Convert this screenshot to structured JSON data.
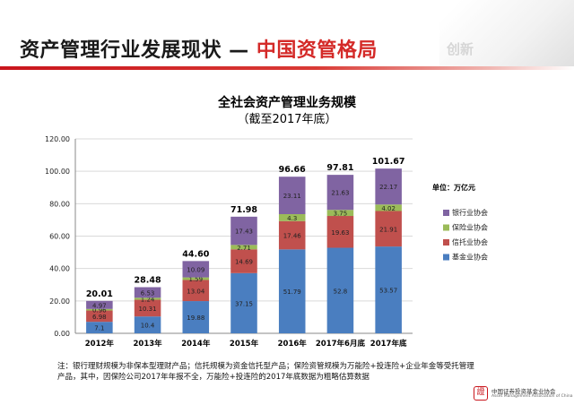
{
  "slide": {
    "title_main": "资产管理行业发展现状 —",
    "title_accent": "中国资管格局",
    "watermark": "创新"
  },
  "chart_data": {
    "type": "bar",
    "stacked": true,
    "title": "全社会资产管理业务规模",
    "subtitle": "（截至2017年底）",
    "categories": [
      "2012年",
      "2013年",
      "2014年",
      "2015年",
      "2016年",
      "2017年6月底",
      "2017年底"
    ],
    "series": [
      {
        "name": "基金业协会",
        "color": "#4a7ec0",
        "values": [
          7.1,
          10.4,
          19.88,
          37.15,
          51.79,
          52.8,
          53.57
        ]
      },
      {
        "name": "信托业协会",
        "color": "#c0504d",
        "values": [
          6.98,
          10.31,
          13.04,
          14.69,
          17.46,
          19.63,
          21.91
        ]
      },
      {
        "name": "保险业协会",
        "color": "#9bbb59",
        "values": [
          0.96,
          1.24,
          1.59,
          2.71,
          4.3,
          3.75,
          4.02
        ]
      },
      {
        "name": "银行业协会",
        "color": "#8064a2",
        "values": [
          4.97,
          6.53,
          10.09,
          17.43,
          23.11,
          21.63,
          22.17
        ]
      }
    ],
    "totals": [
      20.01,
      28.48,
      44.6,
      71.98,
      96.66,
      97.81,
      101.67
    ],
    "yticks": [
      "0.00",
      "20.00",
      "40.00",
      "60.00",
      "80.00",
      "100.00",
      "120.00"
    ],
    "ylim": [
      0,
      120
    ],
    "grid": true,
    "legend_position": "right",
    "unit_label": "单位：万亿元"
  },
  "footnote": "注：银行理财规模为非保本型理财产品；信托规模为资金信托型产品；保险资管规模为万能险+投连险+企业年金等受托管理产品，其中，因保险公司2017年年报不全，万能险+投连险的2017年底数据为粗略估算数据",
  "footer": {
    "org_cn": "中国证券投资基金业协会",
    "org_en": "Asset Management Association of China",
    "seal_glyph": "證"
  },
  "colors": {
    "accent_red": "#d42a28",
    "grid": "#d9d9d9"
  }
}
